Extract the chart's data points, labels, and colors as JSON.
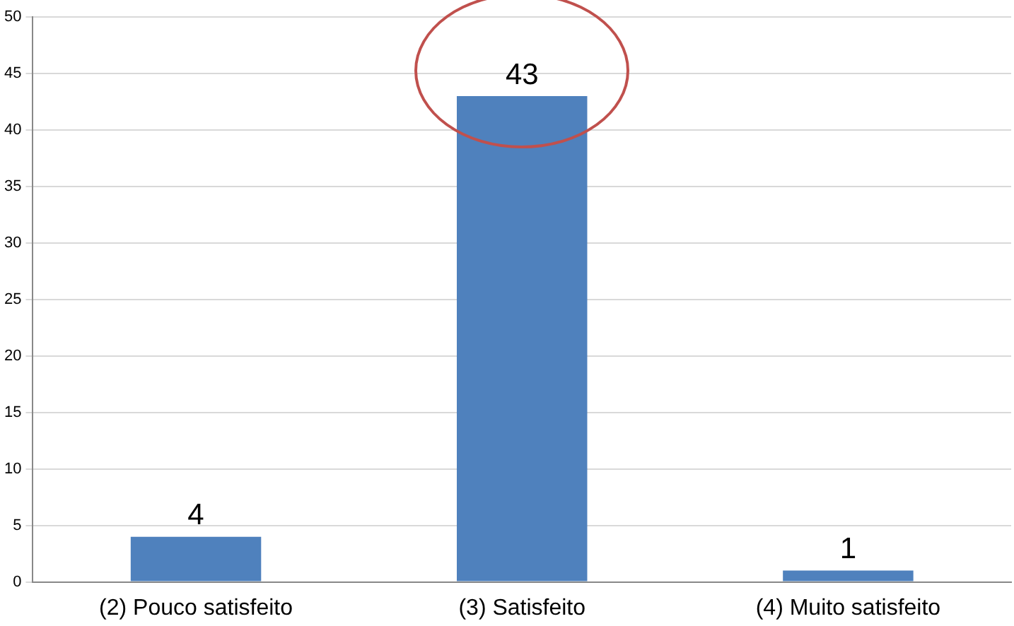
{
  "chart_data": {
    "type": "bar",
    "categories": [
      "(2) Pouco satisfeito",
      "(3) Satisfeito",
      "(4) Muito satisfeito"
    ],
    "values": [
      4,
      43,
      1
    ],
    "color": "#4f81bd",
    "ylim": [
      0,
      50
    ],
    "yticks": [
      0,
      5,
      10,
      15,
      20,
      25,
      30,
      35,
      40,
      45,
      50
    ],
    "grid": "y",
    "data_labels": true
  }
}
